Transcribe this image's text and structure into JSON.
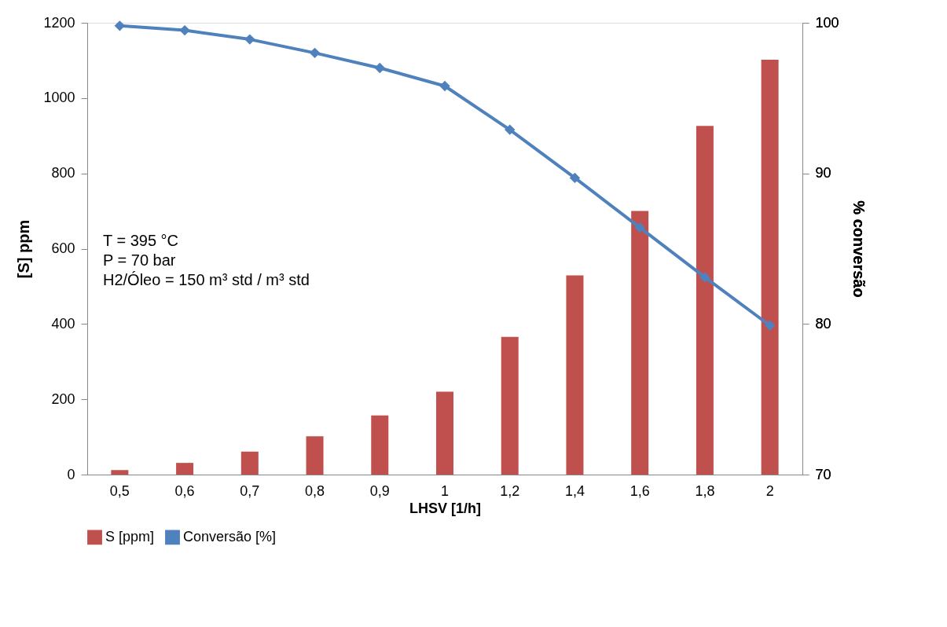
{
  "chart_data": {
    "type": "bar",
    "xlabel": "LHSV [1/h]",
    "ylabel": "[S] ppm",
    "y2label": "% conversão",
    "categories": [
      "0,5",
      "0,6",
      "0,7",
      "0,8",
      "0,9",
      "1",
      "1,2",
      "1,4",
      "1,6",
      "1,8",
      "2"
    ],
    "series": [
      {
        "name": "S [ppm]",
        "color": "#c0504d",
        "values": [
          12,
          31,
          61,
          102,
          157,
          220,
          366,
          529,
          700,
          926,
          1102
        ]
      },
      {
        "name": "Conversão [%]",
        "type": "line",
        "axis": "y2",
        "color": "#4f81bd",
        "values": [
          99.8,
          99.5,
          98.9,
          98.0,
          97.0,
          95.8,
          92.9,
          89.7,
          86.4,
          83.1,
          79.9
        ]
      }
    ],
    "ylim": [
      0,
      1200
    ],
    "yticks": [
      0,
      200,
      400,
      600,
      800,
      1000,
      1200
    ],
    "y2lim": [
      70,
      100
    ],
    "y2ticks": [
      70,
      80,
      90,
      100
    ],
    "annotations": [
      "T = 395 °C",
      "P = 70 bar",
      "H2/Óleo = 150  m³ std / m³ std"
    ],
    "legend": "bottom",
    "grid": false,
    "marker": "diamond",
    "line_style": "solid"
  }
}
